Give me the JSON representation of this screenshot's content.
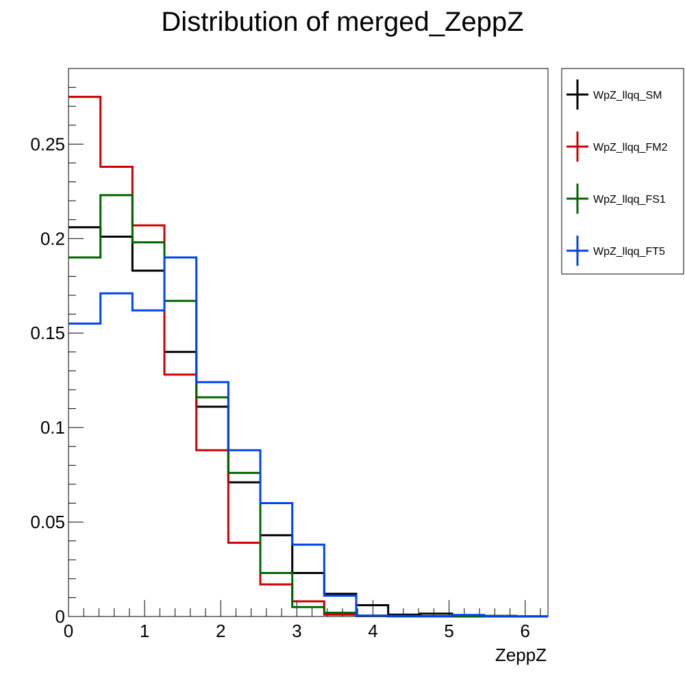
{
  "chart_data": {
    "type": "histogram",
    "title": "Distribution of merged_ZeppZ",
    "xlabel": "ZeppZ",
    "ylabel": "",
    "xlim": [
      0,
      6.3
    ],
    "ylim": [
      0,
      0.29
    ],
    "x_ticks": [
      0,
      1,
      2,
      3,
      4,
      5,
      6
    ],
    "x_tick_labels": [
      "0",
      "1",
      "2",
      "3",
      "4",
      "5",
      "6"
    ],
    "y_ticks": [
      0,
      0.05,
      0.1,
      0.15,
      0.2,
      0.25
    ],
    "y_tick_labels": [
      "0",
      "0.05",
      "0.1",
      "0.15",
      "0.2",
      "0.25"
    ],
    "bin_edges": [
      0,
      0.42,
      0.84,
      1.26,
      1.68,
      2.1,
      2.52,
      2.94,
      3.36,
      3.78,
      4.2,
      4.62,
      5.04,
      5.46,
      5.88,
      6.3
    ],
    "grid": false,
    "legend_position": "outside-right",
    "series": [
      {
        "name": "WpZ_llqq_SM",
        "color": "#000000",
        "values": [
          0.206,
          0.201,
          0.183,
          0.14,
          0.111,
          0.071,
          0.043,
          0.023,
          0.012,
          0.006,
          0.001,
          0.0015,
          0.0005,
          0.0003,
          0.0001
        ]
      },
      {
        "name": "WpZ_llqq_FM2",
        "color": "#cc0000",
        "values": [
          0.275,
          0.238,
          0.207,
          0.128,
          0.088,
          0.039,
          0.017,
          0.008,
          0.001,
          0.0002,
          0.0001,
          0.0001,
          0.0,
          0.0,
          0.0
        ]
      },
      {
        "name": "WpZ_llqq_FS1",
        "color": "#006600",
        "values": [
          0.19,
          0.223,
          0.198,
          0.167,
          0.116,
          0.076,
          0.023,
          0.005,
          0.002,
          0.0003,
          0.0001,
          0.0001,
          0.0,
          0.0,
          0.0
        ]
      },
      {
        "name": "WpZ_llqq_FT5",
        "color": "#0044ee",
        "values": [
          0.155,
          0.171,
          0.162,
          0.19,
          0.124,
          0.088,
          0.06,
          0.038,
          0.011,
          0.0005,
          0.0003,
          0.0002,
          0.0008,
          0.0002,
          0.0001
        ]
      }
    ]
  }
}
